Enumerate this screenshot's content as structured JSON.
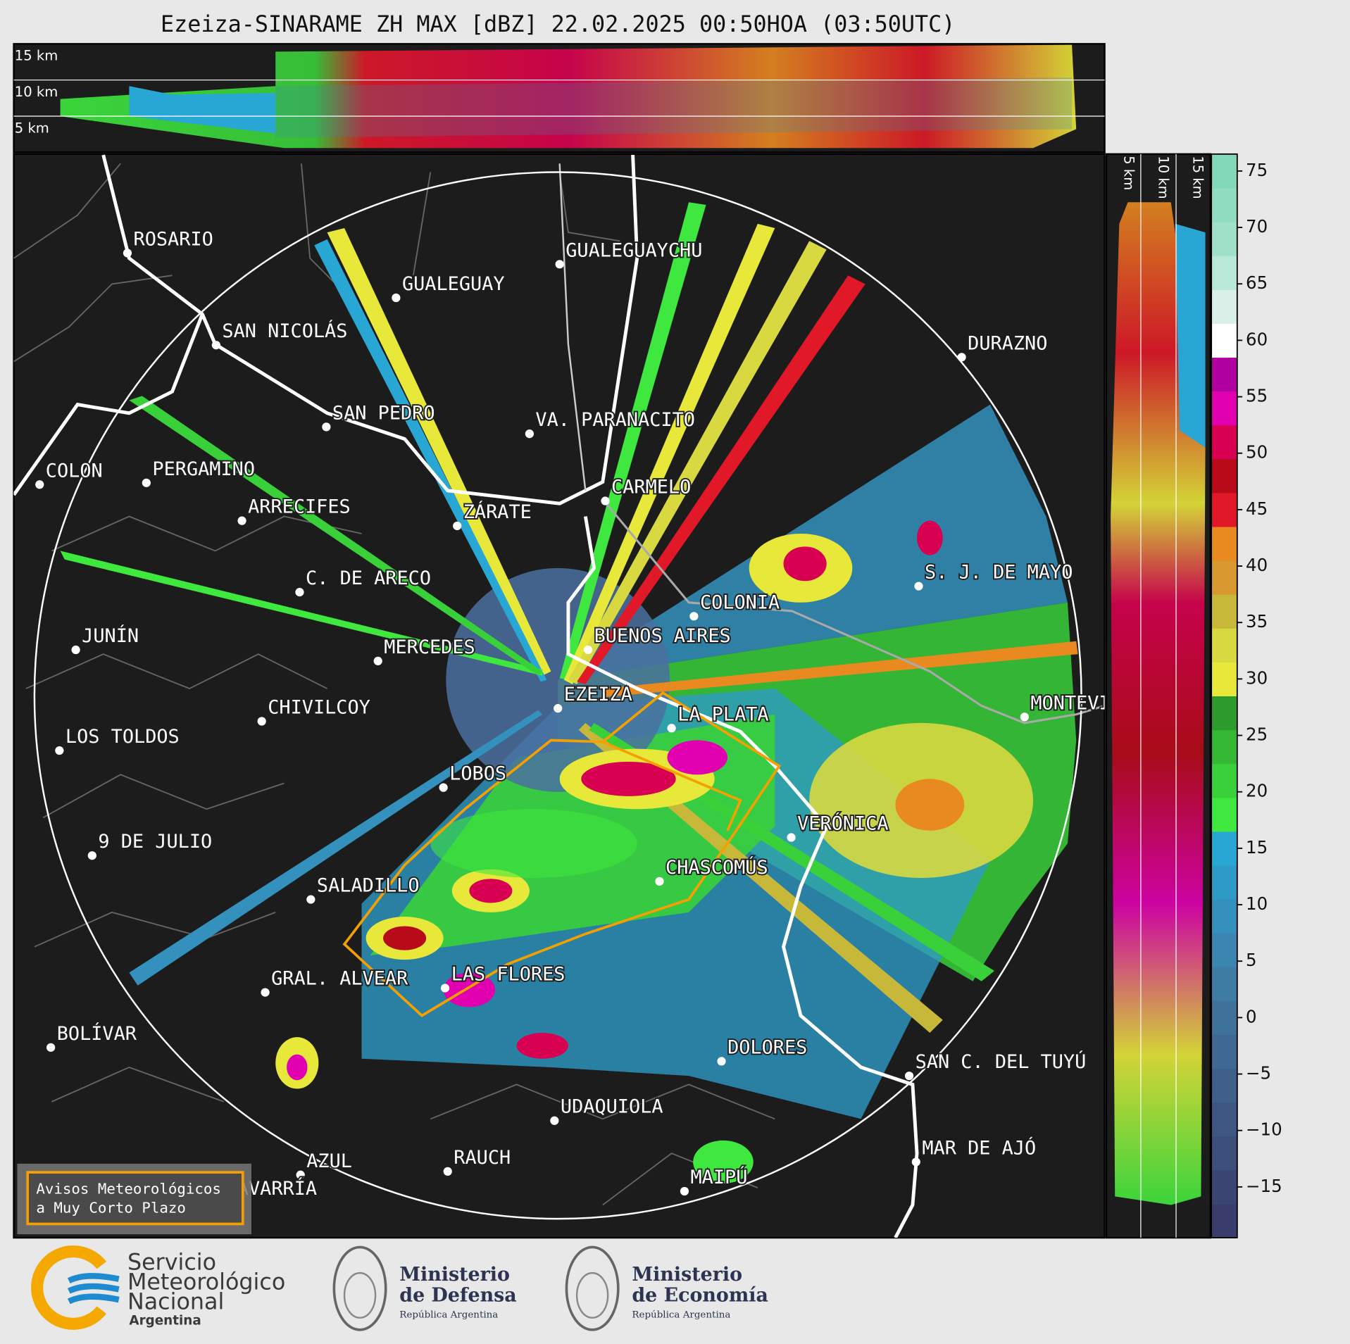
{
  "title": "Ezeiza-SINARAME ZH MAX [dBZ] 22.02.2025 00:50HOA (03:50UTC)",
  "cross_section_top": {
    "height_labels": [
      "15 km",
      "10 km",
      "5 km"
    ]
  },
  "cross_section_side": {
    "height_labels": [
      "5 km",
      "10 km",
      "15 km"
    ]
  },
  "map": {
    "cities": [
      "ROSARIO",
      "GUALEGUAYCHU",
      "GUALEGUAY",
      "SAN NICOLÁS",
      "DURAZNO",
      "SAN PEDRO",
      "VA. PARANACITO",
      "COLON",
      "PERGAMINO",
      "CARMELO",
      "ARRECIFES",
      "ZÁRATE",
      "S. J. DE MAYO",
      "C. DE ARECO",
      "COLONIA",
      "BUENOS AIRES",
      "JUNÍN",
      "MERCEDES",
      "EZEIZA",
      "MONTEVIDEO",
      "CHIVILCOY",
      "LA PLATA",
      "LOS TOLDOS",
      "LOBOS",
      "VERÓNICA",
      "9 DE JULIO",
      "CHASCOMÚS",
      "SALADILLO",
      "GRAL. ALVEAR",
      "LAS FLORES",
      "BOLÍVAR",
      "DOLORES",
      "SAN C. DEL TUYÚ",
      "UDAQUIOLA",
      "MAR DE AJÓ",
      "RAUCH",
      "AZUL",
      "OLAVARRÍA",
      "MAIPÚ"
    ]
  },
  "colorbar": {
    "lim": [
      -19.5,
      76.5
    ],
    "ticks": [
      {
        "value": -15,
        "label": "−15"
      },
      {
        "value": -10,
        "label": "−10"
      },
      {
        "value": -5,
        "label": "−5"
      },
      0,
      5,
      10,
      15,
      20,
      25,
      30,
      35,
      40,
      45,
      50,
      55,
      60,
      65,
      70,
      75
    ],
    "colors": [
      "#3a3d6b",
      "#3b4572",
      "#3c4e7a",
      "#3d5782",
      "#3e608a",
      "#3f6992",
      "#3f729a",
      "#3f7ca4",
      "#3a86b0",
      "#3490bc",
      "#2e9ac6",
      "#28a6d4",
      "#3ee83e",
      "#3ad03a",
      "#34b834",
      "#2c9a2c",
      "#e8e83a",
      "#d8d840",
      "#c8b83a",
      "#d89a30",
      "#e88a20",
      "#e01828",
      "#b80a18",
      "#d80050",
      "#e000b0",
      "#b000a0",
      "#ffffff",
      "#d8f0e8",
      "#b8e8d8",
      "#a0e0c8",
      "#90dcc0",
      "#80d8b8"
    ]
  },
  "legend": {
    "lines": [
      "Avisos Meteorológicos",
      "a Muy Corto Plazo"
    ]
  },
  "footer": {
    "smn": {
      "lines": [
        "Servicio",
        "Meteorológico",
        "Nacional"
      ],
      "country": "Argentina"
    },
    "defensa": {
      "lines": [
        "Ministerio",
        "de Defensa"
      ],
      "country": "República Argentina"
    },
    "economia": {
      "lines": [
        "Ministerio",
        "de Economía"
      ],
      "country": "República Argentina"
    }
  }
}
